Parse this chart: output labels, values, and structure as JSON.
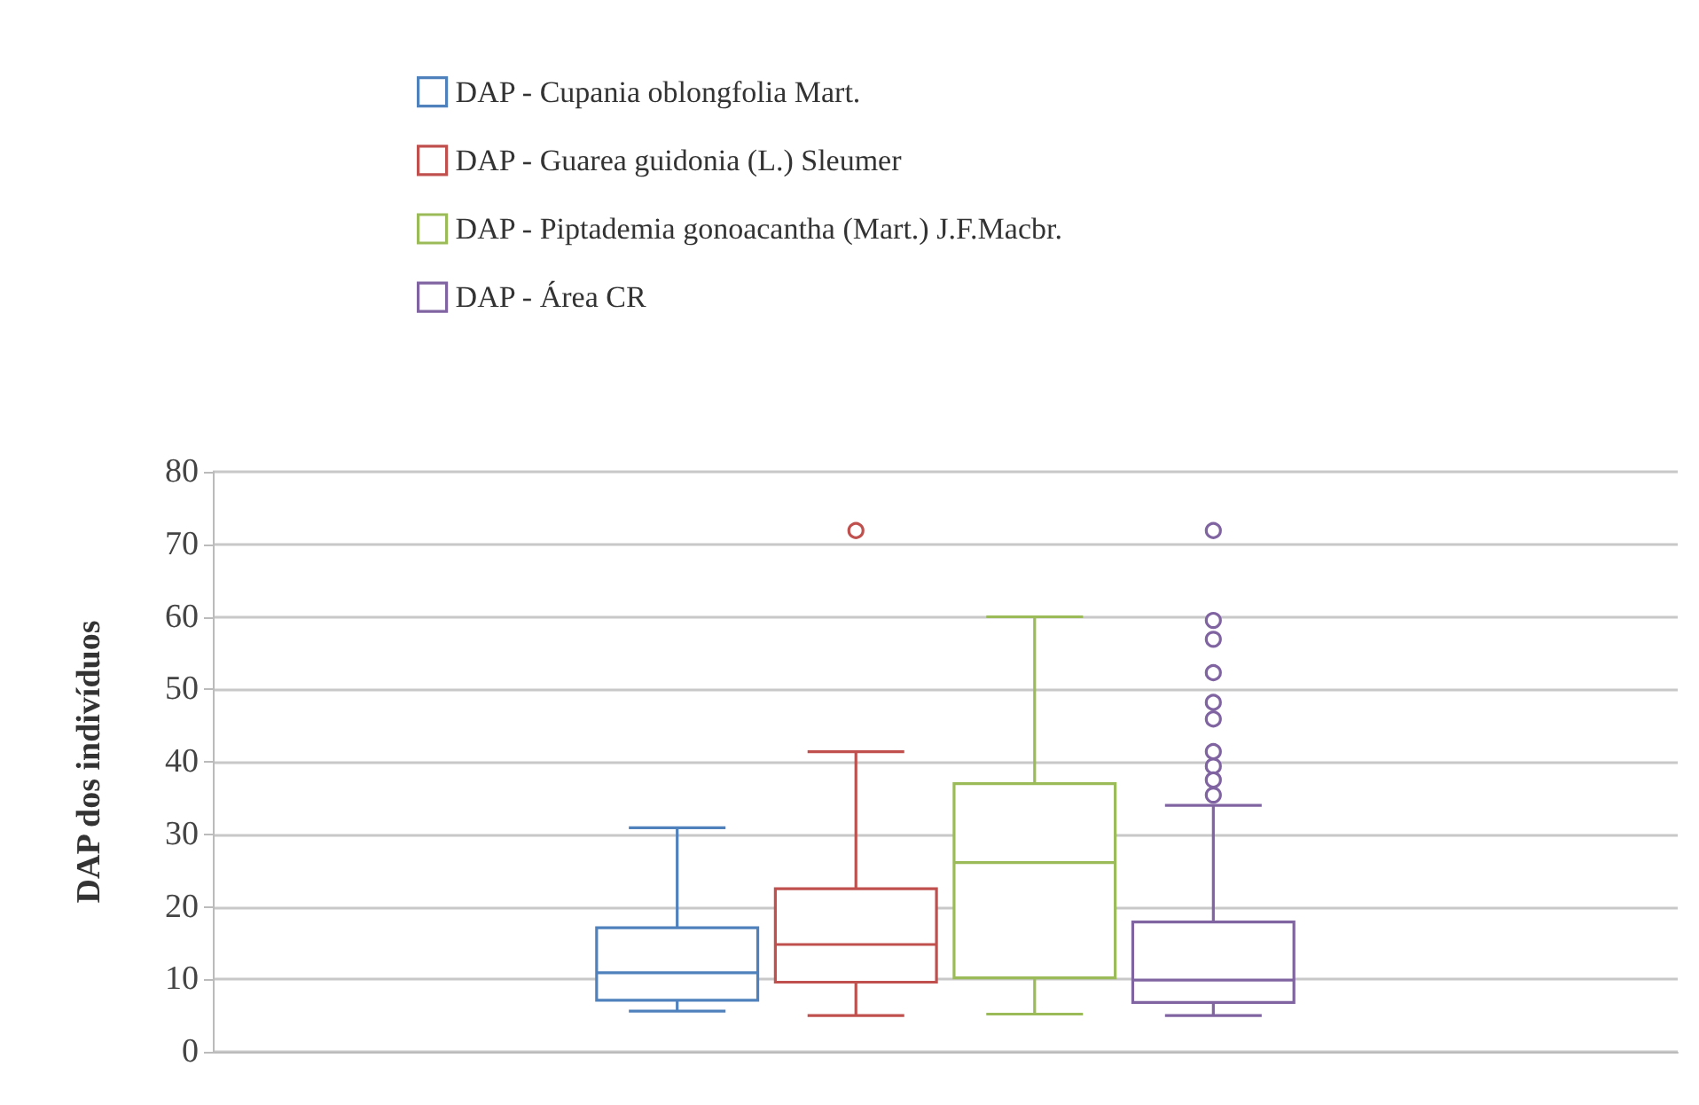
{
  "chart_data": {
    "type": "box",
    "ylabel": "DAP dos indivíduos",
    "categories": [
      null
    ],
    "ylim": [
      0,
      80
    ],
    "yticks": [
      0,
      10,
      20,
      30,
      40,
      50,
      60,
      70,
      80
    ],
    "grid": "y",
    "legend": "top",
    "series": [
      {
        "name": "DAP - Cupania oblongfolia Mart.",
        "color": "#4f81bd",
        "boxes": [
          {
            "low": 5.6,
            "q1": 7.1,
            "median": 10.9,
            "q3": 17.1,
            "high": 30.9
          }
        ]
      },
      {
        "name": "DAP - Guarea guidonia (L.) Sleumer",
        "color": "#c0504d",
        "boxes": [
          {
            "low": 5,
            "q1": 9.6,
            "median": 14.8,
            "q3": 22.5,
            "high": 41.4,
            "outliers": [
              71.9
            ]
          }
        ]
      },
      {
        "name": "DAP - Piptademia gonoacantha (Mart.) J.F.Macbr.",
        "color": "#9bbb59",
        "boxes": [
          {
            "low": 5.2,
            "q1": 10.2,
            "median": 26.1,
            "q3": 37,
            "high": 60
          }
        ]
      },
      {
        "name": "DAP - Área CR",
        "color": "#8064a2",
        "boxes": [
          {
            "low": 5,
            "q1": 6.8,
            "median": 9.9,
            "q3": 17.9,
            "high": 34,
            "outliers": [
              71.9,
              59.5,
              56.9,
              52.3,
              48.2,
              45.9,
              41.4,
              39.4,
              37.5,
              35.4
            ]
          }
        ]
      }
    ]
  }
}
